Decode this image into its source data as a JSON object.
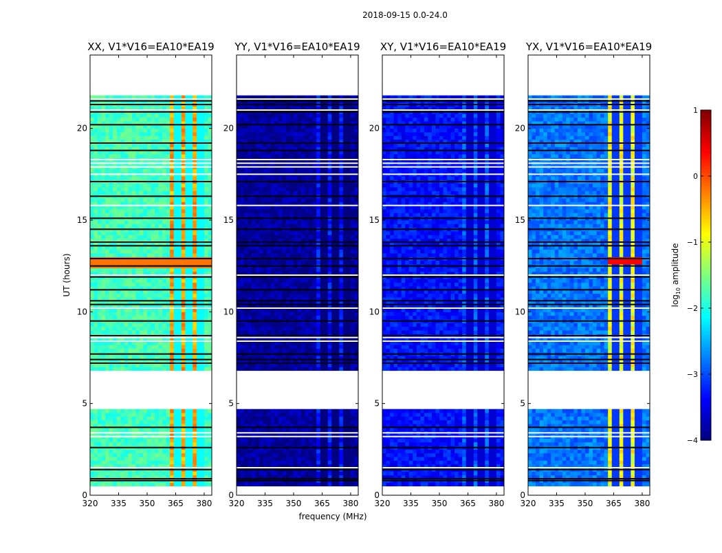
{
  "chart_data": {
    "type": "heatmap",
    "suptitle": "2018-09-15 0.0-24.0",
    "xlabel": "frequency (MHz)",
    "ylabel": "UT (hours)",
    "xlim": [
      320,
      384
    ],
    "ylim": [
      0,
      24
    ],
    "xticks": [
      "320",
      "335",
      "350",
      "365",
      "380"
    ],
    "xtick_values": [
      320,
      335,
      350,
      365,
      380
    ],
    "yticks": [
      "0",
      "5",
      "10",
      "15",
      "20"
    ],
    "ytick_values": [
      0,
      5,
      10,
      15,
      20
    ],
    "data_time_ranges": [
      [
        0.5,
        4.7
      ],
      [
        6.8,
        21.8
      ]
    ],
    "black_flag_hours": [
      0.8,
      0.9,
      1.4,
      2.6,
      3.7,
      7.2,
      7.4,
      7.7,
      8.7,
      9.5,
      10.4,
      10.6,
      11.2,
      11.9,
      12.5,
      12.9,
      13.6,
      13.8,
      14.5,
      15.1,
      16.3,
      17.1,
      18.8,
      19.2,
      20.2,
      20.9,
      21.3,
      21.5
    ],
    "white_gap_hours": [
      1.5,
      3.2,
      3.4,
      8.4,
      8.6,
      10.2,
      12.0,
      15.8,
      17.5,
      17.9,
      18.1,
      18.3,
      21.0,
      21.6
    ],
    "rfi_band_mhz": [
      362,
      380
    ],
    "rfi_notch_mhz": [
      366,
      372,
      378
    ],
    "panels": [
      {
        "title": "XX, V1*V16=EA10*EA19",
        "background_log_amp": -1.8,
        "band_log_amp": -0.4
      },
      {
        "title": "YY, V1*V16=EA10*EA19",
        "background_log_amp": -3.85,
        "band_log_amp": -3.3
      },
      {
        "title": "XY, V1*V16=EA10*EA19",
        "background_log_amp": -3.3,
        "band_log_amp": -3.0
      },
      {
        "title": "YX, V1*V16=EA10*EA19",
        "background_log_amp": -2.8,
        "band_log_amp": -0.9
      }
    ],
    "colorbar": {
      "label": "log10 amplitude",
      "label_main": "log",
      "label_sub": "10",
      "label_rest": " amplitude",
      "range": [
        -4,
        1
      ],
      "ticks": [
        "−4",
        "−3",
        "−2",
        "−1",
        "0",
        "1"
      ],
      "tick_values": [
        -4,
        -3,
        -2,
        -1,
        0,
        1
      ],
      "colormap": "jet"
    }
  }
}
